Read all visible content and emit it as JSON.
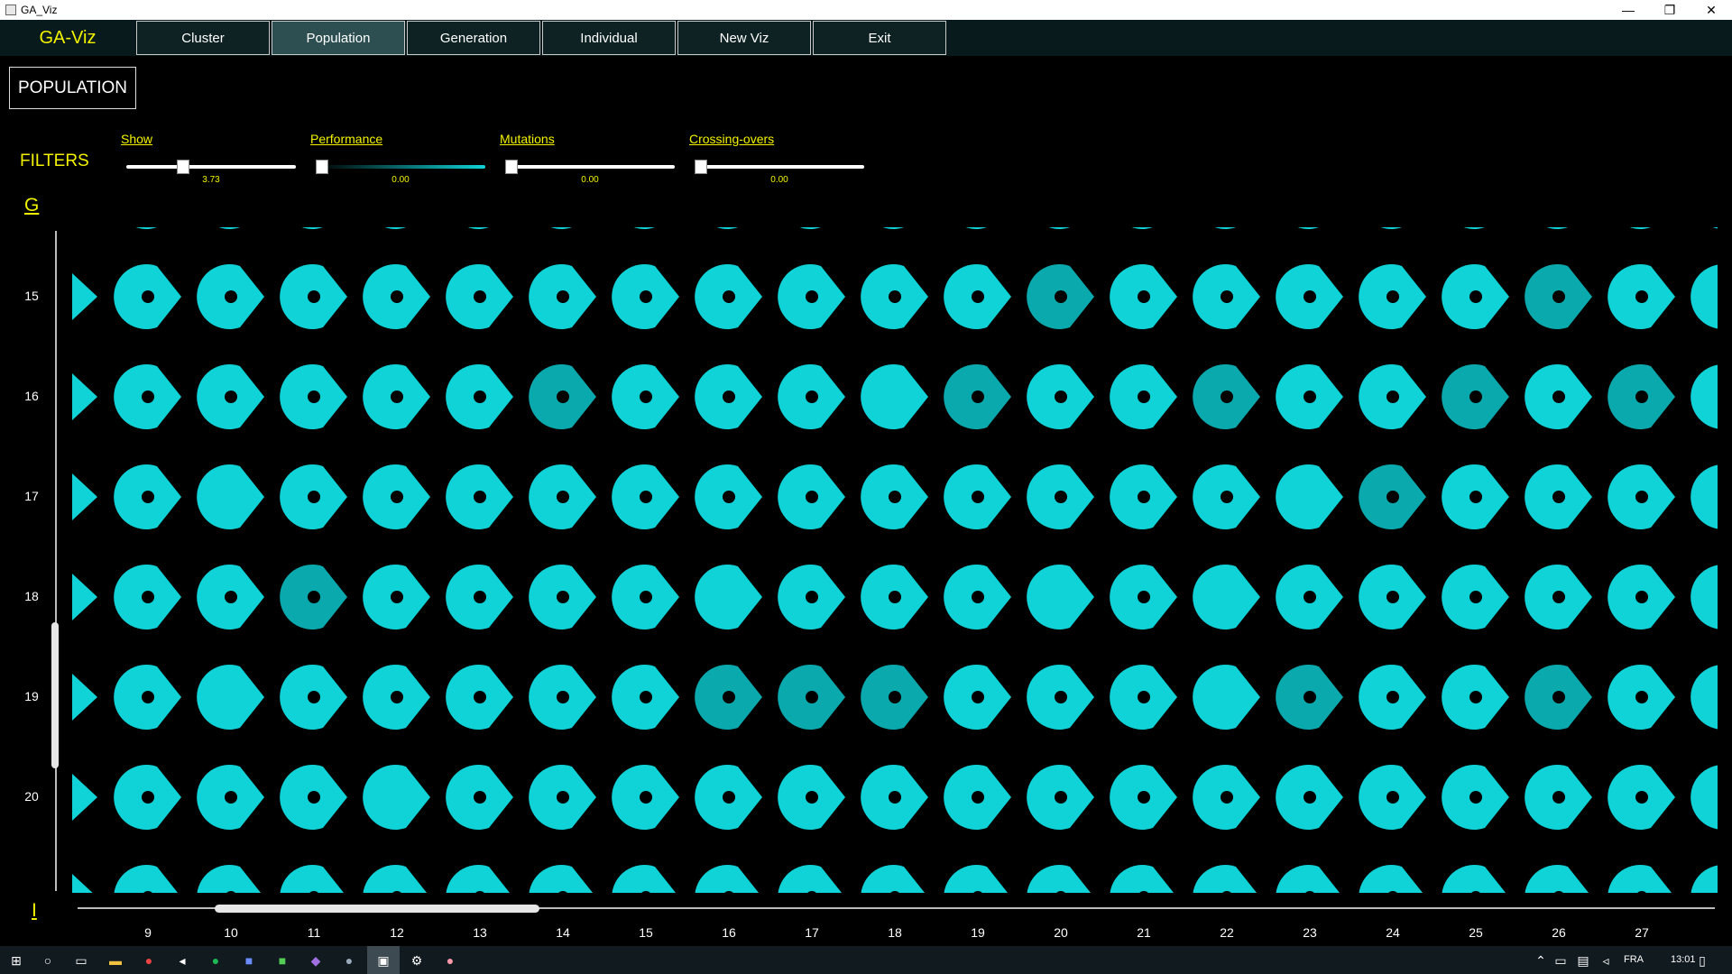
{
  "window": {
    "title": "GA_Viz",
    "minimize": "—",
    "maximize": "❐",
    "close": "✕"
  },
  "nav": {
    "brand": "GA-Viz",
    "tabs": [
      {
        "label": "Cluster",
        "active": false
      },
      {
        "label": "Population",
        "active": true
      },
      {
        "label": "Generation",
        "active": false
      },
      {
        "label": "Individual",
        "active": false
      },
      {
        "label": "New Viz",
        "active": false
      },
      {
        "label": "Exit",
        "active": false
      }
    ]
  },
  "population_button": "POPULATION",
  "filters": {
    "label": "FILTERS",
    "items": [
      {
        "label": "Show",
        "value": "3.73",
        "position": 0.32
      },
      {
        "label": "Performance",
        "value": "0.00",
        "position": 0.0
      },
      {
        "label": "Mutations",
        "value": "0.00",
        "position": 0.0
      },
      {
        "label": "Crossing-overs",
        "value": "0.00",
        "position": 0.0
      }
    ]
  },
  "axes": {
    "generation_label": "G",
    "individual_label": "I"
  },
  "grid": {
    "rows": [
      "15",
      "16",
      "17",
      "18",
      "19",
      "20"
    ],
    "columns": [
      "9",
      "10",
      "11",
      "12",
      "13",
      "14",
      "15",
      "16",
      "17",
      "18",
      "19",
      "20",
      "21",
      "22",
      "23",
      "24",
      "25",
      "26",
      "27"
    ],
    "glyph_color": "#10d3d8",
    "glyph_color_dark": "#0aa9ad"
  },
  "taskbar": {
    "language": "FRA",
    "time": "13:01"
  }
}
